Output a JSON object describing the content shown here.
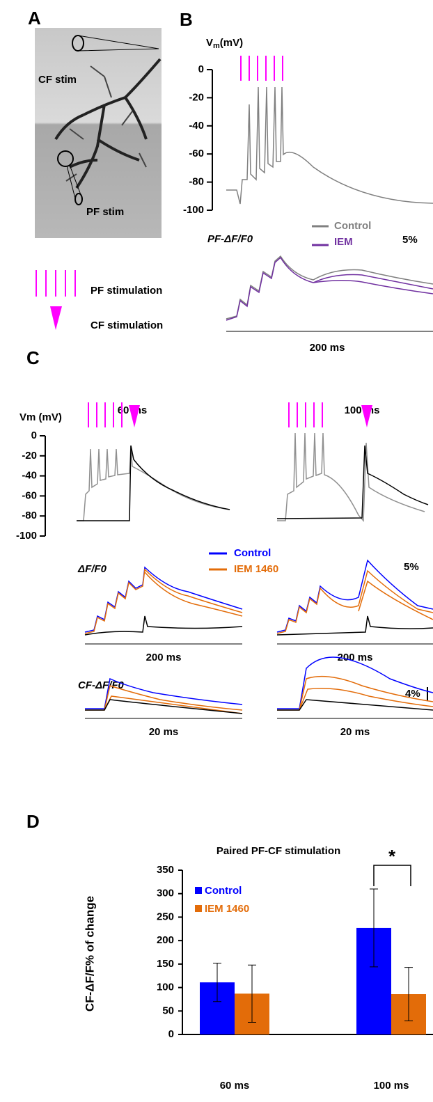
{
  "panel_a": {
    "label": "A",
    "cf_stim": "CF stim",
    "pf_stim": "PF stim"
  },
  "stim_legend": {
    "pf": "PF stimulation",
    "cf": "CF stimulation"
  },
  "panel_b": {
    "label": "B",
    "vm_symbol": "V",
    "vm_sub": "m",
    "vm_unit": "(mV)",
    "ylim": [
      -100,
      0
    ],
    "yticks": [
      0,
      -20,
      -40,
      -60,
      -80,
      -100
    ],
    "trace_label": "PF-ΔF/F0",
    "legend": [
      "Control",
      "IEM"
    ],
    "scale": "5%",
    "time": "200 ms"
  },
  "panel_c": {
    "label": "C",
    "intervals": [
      "60 ms",
      "100 ms"
    ],
    "vm_label": "Vm (mV)",
    "ylim": [
      -100,
      0
    ],
    "yticks": [
      0,
      -20,
      -40,
      -60,
      -80,
      -100
    ],
    "df_label": "ΔF/F0",
    "legend": [
      "Control",
      "IEM 1460"
    ],
    "df_scale": "5%",
    "df_time": [
      "200 ms",
      "200 ms"
    ],
    "cf_label": "CF-ΔF/F0",
    "cf_scale": "4%",
    "cf_time": [
      "20 ms",
      "20 ms"
    ]
  },
  "chart_data": {
    "type": "bar",
    "panel_label": "D",
    "title": "Paired PF-CF stimulation",
    "y_label": "CF-ΔF/F% of change",
    "categories": [
      "60 ms",
      "100 ms"
    ],
    "series": [
      {
        "name": "Control",
        "color": "#0000ff",
        "values": [
          111,
          227
        ],
        "errors": [
          41,
          83
        ]
      },
      {
        "name": "IEM 1460",
        "color": "#e36c09",
        "values": [
          87,
          86
        ],
        "errors": [
          61,
          57
        ]
      }
    ],
    "ylim": [
      0,
      350
    ],
    "yticks": [
      0,
      50,
      100,
      150,
      200,
      250,
      300,
      350
    ],
    "annotation": "*"
  }
}
